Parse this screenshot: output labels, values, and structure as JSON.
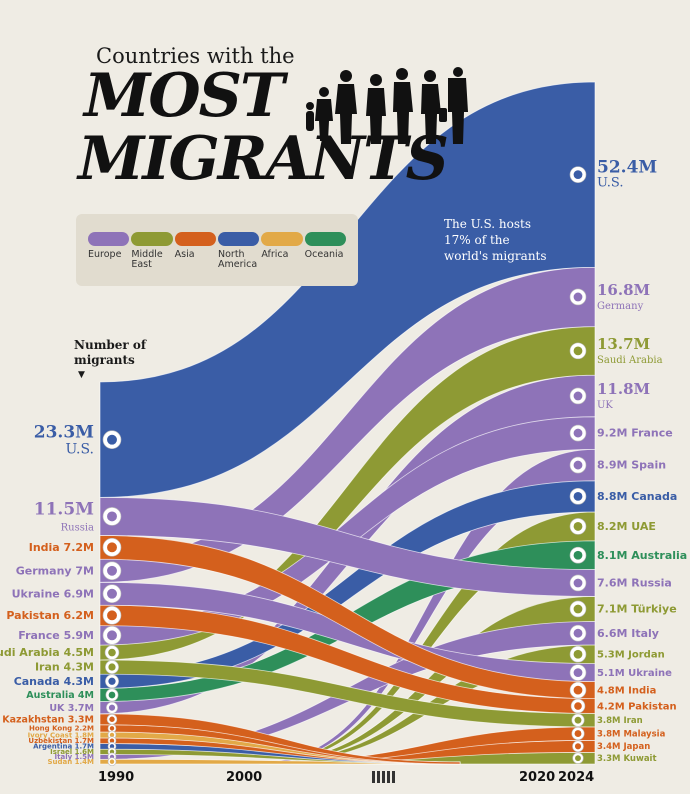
{
  "title": {
    "line1": "Countries with the",
    "line2": "MOST",
    "line3": "MIGRANTS"
  },
  "legend": [
    {
      "label": "Europe",
      "color": "#8e73b8"
    },
    {
      "label": "Middle East",
      "color": "#8e9a34"
    },
    {
      "label": "Asia",
      "color": "#d4601d"
    },
    {
      "label": "North America",
      "color": "#3a5da6"
    },
    {
      "label": "Africa",
      "color": "#e2a947"
    },
    {
      "label": "Oceania",
      "color": "#2e8f5a"
    }
  ],
  "axis_title": "Number of migrants",
  "annotation": "The U.S. hosts 17% of the world's migrants",
  "colors": {
    "Europe": "#8e73b8",
    "Middle East": "#8e9a34",
    "Asia": "#d4601d",
    "North America": "#3a5da6",
    "Africa": "#e2a947",
    "Oceania": "#2e8f5a",
    "background": "#efece4"
  },
  "chart_data": {
    "type": "area",
    "x": [
      1990,
      2000,
      2020,
      2024
    ],
    "x_ticks": [
      "1990",
      "2000",
      "2020",
      "2024"
    ],
    "value_unit": "M",
    "series_1990": [
      {
        "country": "U.S.",
        "value": 23.3,
        "label": "23.3M",
        "region": "North America"
      },
      {
        "country": "Russia",
        "value": 11.5,
        "label": "11.5M",
        "region": "Europe"
      },
      {
        "country": "India",
        "value": 7.2,
        "label": "7.2M",
        "region": "Asia"
      },
      {
        "country": "Germany",
        "value": 7,
        "label": "7M",
        "region": "Europe"
      },
      {
        "country": "Ukraine",
        "value": 6.9,
        "label": "6.9M",
        "region": "Europe"
      },
      {
        "country": "Pakistan",
        "value": 6.2,
        "label": "6.2M",
        "region": "Asia"
      },
      {
        "country": "France",
        "value": 5.9,
        "label": "5.9M",
        "region": "Europe"
      },
      {
        "country": "Saudi Arabia",
        "value": 4.5,
        "label": "4.5M",
        "region": "Middle East"
      },
      {
        "country": "Iran",
        "value": 4.3,
        "label": "4.3M",
        "region": "Middle East"
      },
      {
        "country": "Canada",
        "value": 4.3,
        "label": "4.3M",
        "region": "North America"
      },
      {
        "country": "Australia",
        "value": 4,
        "label": "4M",
        "region": "Oceania"
      },
      {
        "country": "UK",
        "value": 3.7,
        "label": "3.7M",
        "region": "Europe"
      },
      {
        "country": "Kazakhstan",
        "value": 3.3,
        "label": "3.3M",
        "region": "Asia"
      },
      {
        "country": "Hong Kong",
        "value": 2.2,
        "label": "2.2M",
        "region": "Asia"
      },
      {
        "country": "Ivory Coast",
        "value": 1.8,
        "label": "1.8M",
        "region": "Africa"
      },
      {
        "country": "Uzbekistan",
        "value": 1.7,
        "label": "1.7M",
        "region": "Asia"
      },
      {
        "country": "Argentina",
        "value": 1.7,
        "label": "1.7M",
        "region": "North America"
      },
      {
        "country": "Israel",
        "value": 1.6,
        "label": "1.6M",
        "region": "Middle East"
      },
      {
        "country": "Italy",
        "value": 1.5,
        "label": "1.5M",
        "region": "Europe"
      },
      {
        "country": "Sudan",
        "value": 1.4,
        "label": "1.4M",
        "region": "Africa"
      }
    ],
    "series_2024": [
      {
        "country": "U.S.",
        "value": 52.4,
        "label": "52.4M",
        "region": "North America"
      },
      {
        "country": "Germany",
        "value": 16.8,
        "label": "16.8M",
        "region": "Europe"
      },
      {
        "country": "Saudi Arabia",
        "value": 13.7,
        "label": "13.7M",
        "region": "Middle East"
      },
      {
        "country": "UK",
        "value": 11.8,
        "label": "11.8M",
        "region": "Europe"
      },
      {
        "country": "France",
        "value": 9.2,
        "label": "9.2M",
        "region": "Europe"
      },
      {
        "country": "Spain",
        "value": 8.9,
        "label": "8.9M",
        "region": "Europe"
      },
      {
        "country": "Canada",
        "value": 8.8,
        "label": "8.8M",
        "region": "North America"
      },
      {
        "country": "UAE",
        "value": 8.2,
        "label": "8.2M",
        "region": "Middle East"
      },
      {
        "country": "Australia",
        "value": 8.1,
        "label": "8.1M",
        "region": "Oceania"
      },
      {
        "country": "Russia",
        "value": 7.6,
        "label": "7.6M",
        "region": "Europe"
      },
      {
        "country": "Türkiye",
        "value": 7.1,
        "label": "7.1M",
        "region": "Middle East"
      },
      {
        "country": "Italy",
        "value": 6.6,
        "label": "6.6M",
        "region": "Europe"
      },
      {
        "country": "Jordan",
        "value": 5.3,
        "label": "5.3M",
        "region": "Middle East"
      },
      {
        "country": "Ukraine",
        "value": 5.1,
        "label": "5.1M",
        "region": "Europe"
      },
      {
        "country": "India",
        "value": 4.8,
        "label": "4.8M",
        "region": "Asia"
      },
      {
        "country": "Pakistan",
        "value": 4.2,
        "label": "4.2M",
        "region": "Asia"
      },
      {
        "country": "Iran",
        "value": 3.8,
        "label": "3.8M",
        "region": "Middle East"
      },
      {
        "country": "Malaysia",
        "value": 3.8,
        "label": "3.8M",
        "region": "Asia"
      },
      {
        "country": "Japan",
        "value": 3.4,
        "label": "3.4M",
        "region": "Asia"
      },
      {
        "country": "Kuwait",
        "value": 3.3,
        "label": "3.3M",
        "region": "Middle East"
      }
    ]
  }
}
